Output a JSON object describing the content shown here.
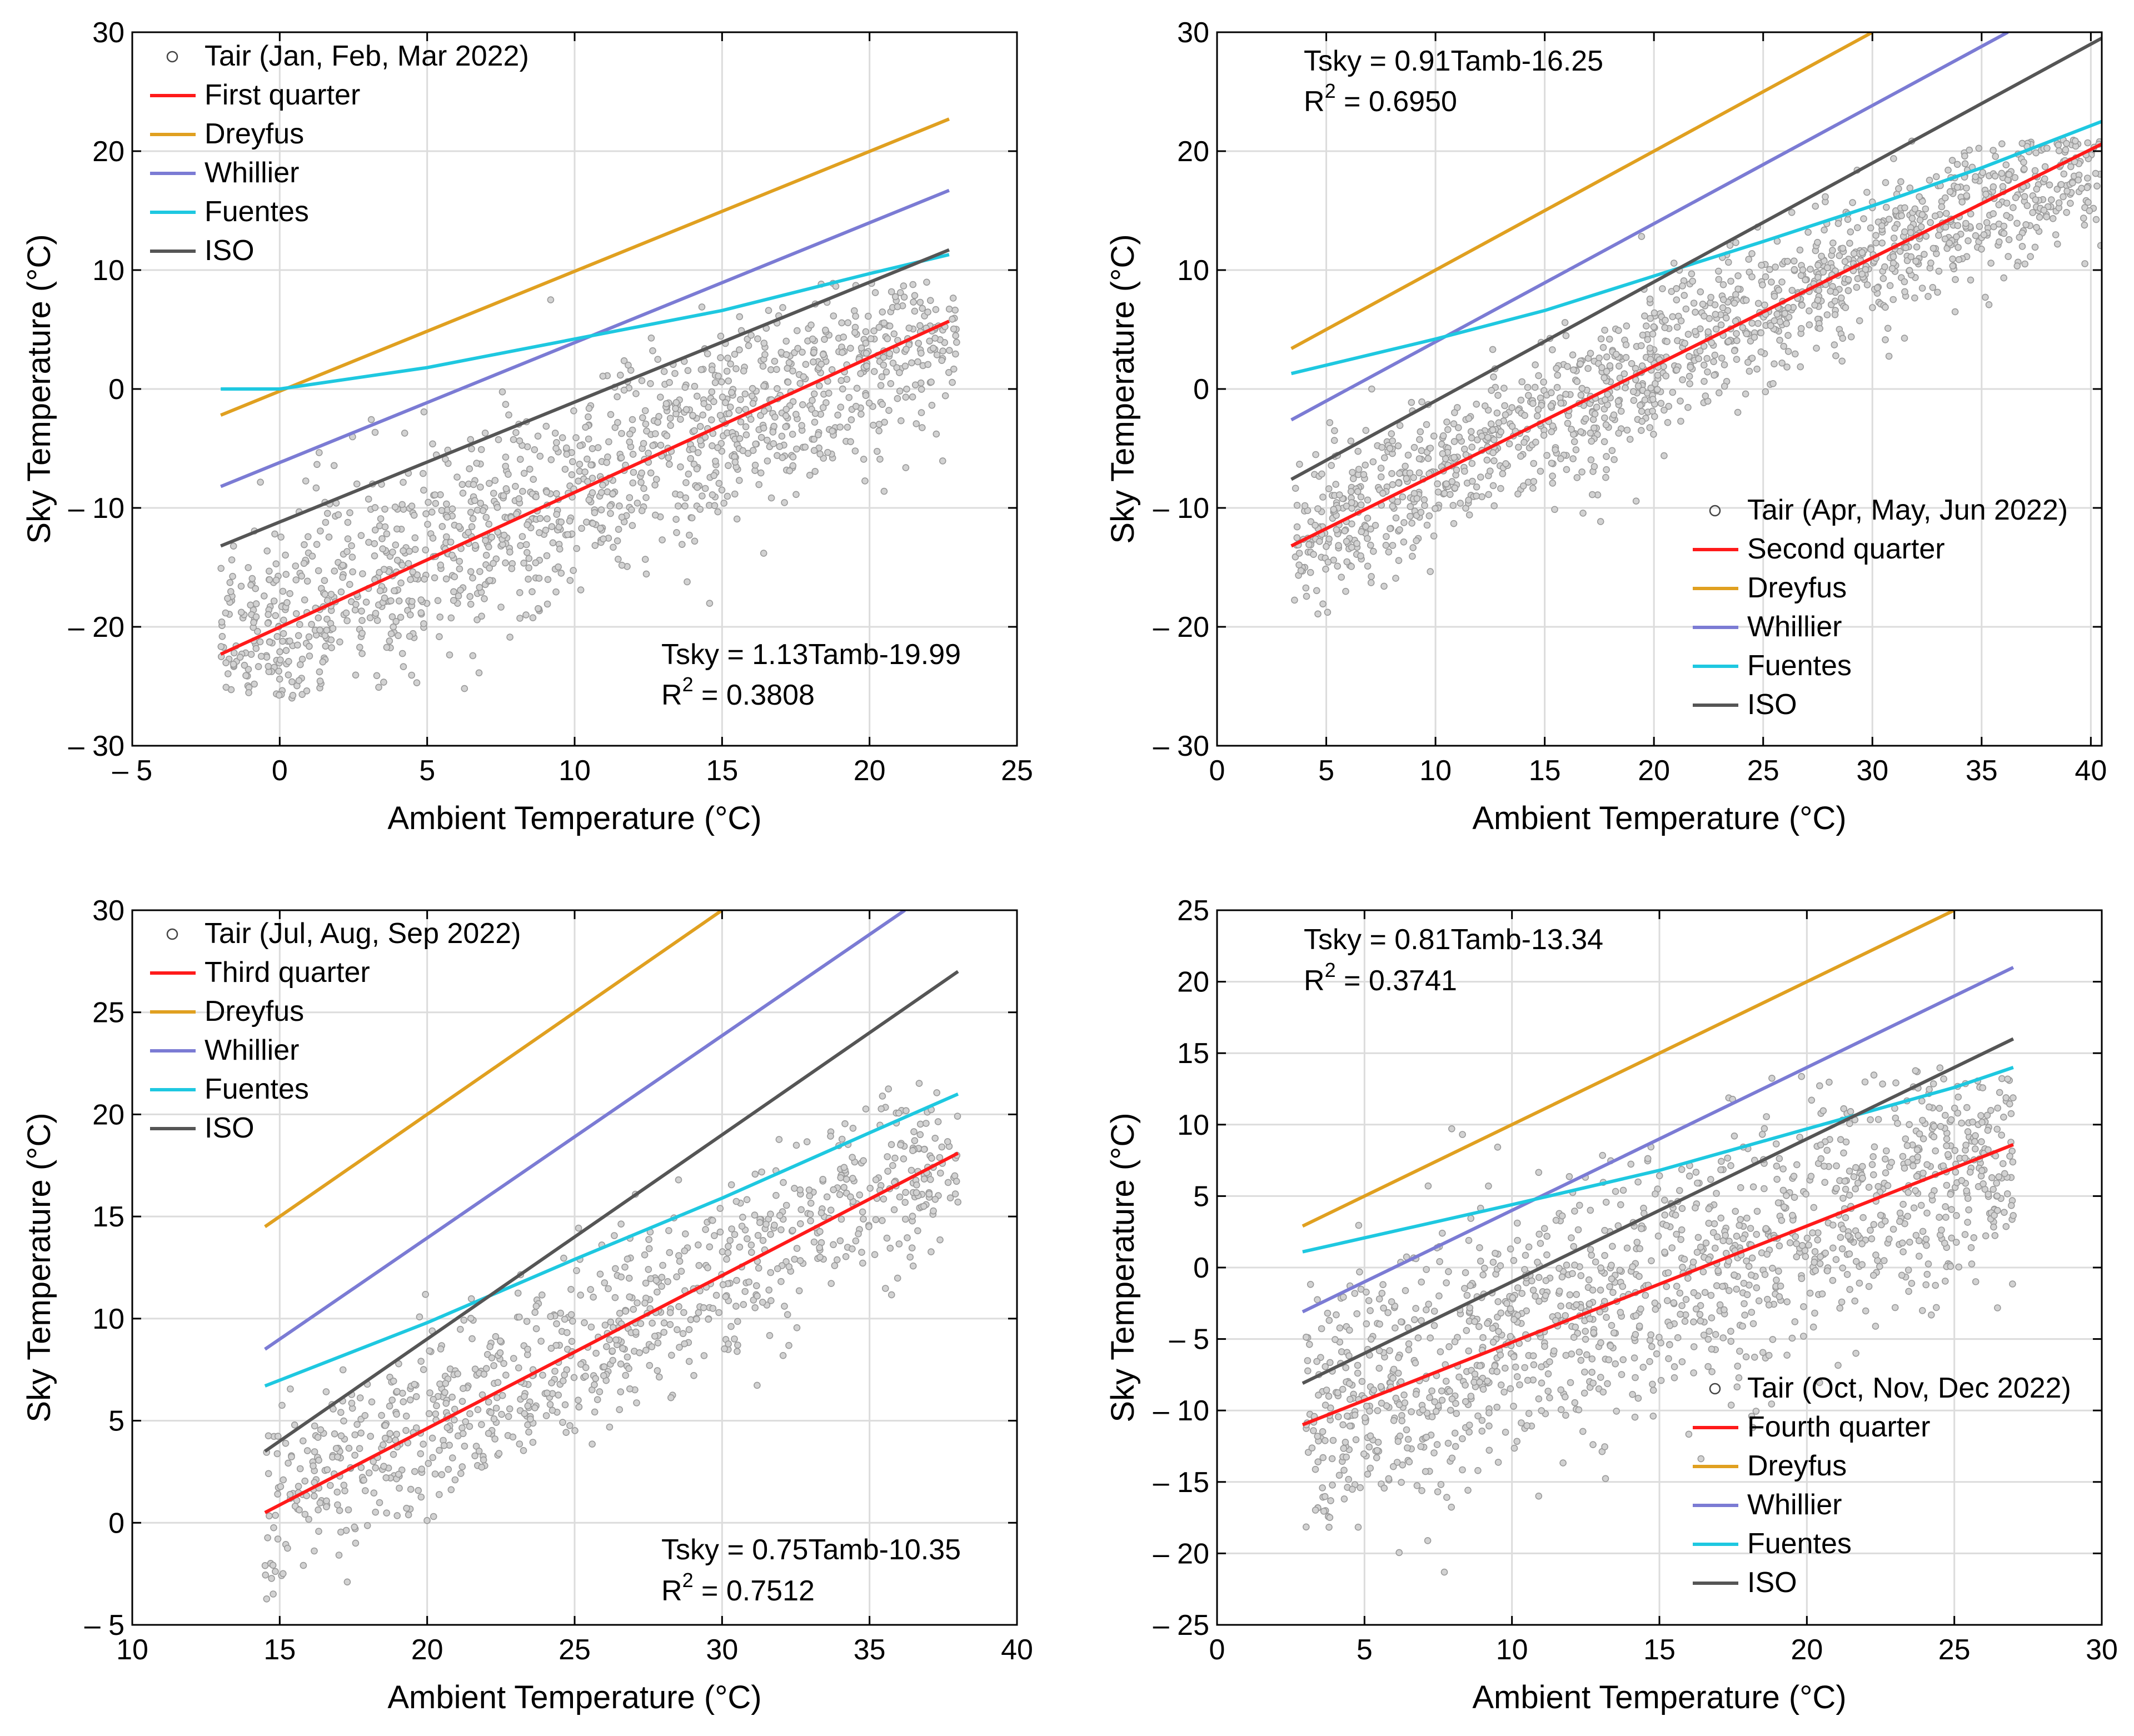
{
  "chart_data": [
    {
      "type": "scatter",
      "title": "",
      "xlabel": "Ambient Temperature (°C)",
      "ylabel": "Sky Temperature (°C)",
      "xlim": [
        -5,
        25
      ],
      "ylim": [
        -30,
        30
      ],
      "xticks": [
        -5,
        0,
        5,
        10,
        15,
        20,
        25
      ],
      "yticks": [
        -30,
        -20,
        -10,
        0,
        10,
        20,
        30
      ],
      "xtick_labels": [
        "– 5",
        "0",
        "5",
        "10",
        "15",
        "20",
        "25"
      ],
      "ytick_labels": [
        "– 30",
        "– 20",
        "– 10",
        "0",
        "10",
        "20",
        "30"
      ],
      "grid": true,
      "legend_position": "top-left",
      "legend": [
        "Tair (Jan, Feb, Mar 2022)",
        "First quarter",
        "Dreyfus",
        "Whillier",
        "Fuentes",
        "ISO"
      ],
      "annotation_position": "bottom-right",
      "annotation": {
        "equation": "Tsky = 1.13Tamb-19.99",
        "r2_prefix": "R",
        "r2_sup": "2",
        "r2_value": " = 0.3808"
      },
      "scatter": {
        "x_range": [
          -2,
          23
        ],
        "y_range": [
          -26,
          9
        ],
        "count": 1400,
        "slope": 1.13,
        "intercept": -19.99,
        "spread": 4.5
      },
      "series": [
        {
          "name": "First quarter",
          "color": "#ff1a1a",
          "x": [
            -2,
            22.7
          ],
          "y": [
            -22.3,
            5.7
          ]
        },
        {
          "name": "Dreyfus",
          "color": "#e0a020",
          "x": [
            -2,
            22.7
          ],
          "y": [
            -2.2,
            22.7
          ]
        },
        {
          "name": "Whillier",
          "color": "#7b7bd4",
          "x": [
            -2,
            22.7
          ],
          "y": [
            -8.2,
            16.7
          ]
        },
        {
          "name": "Fuentes",
          "color": "#1ec8e0",
          "x": [
            -2,
            0,
            5,
            10,
            15,
            20,
            22.7
          ],
          "y": [
            0,
            0,
            1.8,
            4.2,
            6.6,
            9.7,
            11.3
          ]
        },
        {
          "name": "ISO",
          "color": "#555555",
          "x": [
            -2,
            22.7
          ],
          "y": [
            -13.2,
            11.7
          ]
        }
      ]
    },
    {
      "type": "scatter",
      "title": "",
      "xlabel": "Ambient Temperature (°C)",
      "ylabel": "Sky Temperature (°C)",
      "xlim": [
        0,
        40.5
      ],
      "ylim": [
        -30,
        30
      ],
      "xticks": [
        0,
        5,
        10,
        15,
        20,
        25,
        30,
        35,
        40
      ],
      "yticks": [
        -30,
        -20,
        -10,
        0,
        10,
        20,
        30
      ],
      "xtick_labels": [
        "0",
        "5",
        "10",
        "15",
        "20",
        "25",
        "30",
        "35",
        "40"
      ],
      "ytick_labels": [
        "– 30",
        "– 20",
        "– 10",
        "0",
        "10",
        "20",
        "30"
      ],
      "grid": true,
      "legend_position": "bottom-right",
      "legend": [
        "Tair (Apr, May, Jun 2022)",
        "Second quarter",
        "Dreyfus",
        "Whillier",
        "Fuentes",
        "ISO"
      ],
      "annotation_position": "top-left",
      "annotation": {
        "equation": "Tsky = 0.91Tamb-16.25",
        "r2_prefix": "R",
        "r2_sup": "2",
        "r2_value": " = 0.6950"
      },
      "scatter": {
        "x_range": [
          3.5,
          40.5
        ],
        "y_range": [
          -19,
          21
        ],
        "count": 1500,
        "slope": 0.91,
        "intercept": -16.25,
        "spread": 3.2
      },
      "series": [
        {
          "name": "Second quarter",
          "color": "#ff1a1a",
          "x": [
            3.4,
            40.5
          ],
          "y": [
            -13.2,
            20.6
          ]
        },
        {
          "name": "Dreyfus",
          "color": "#e0a020",
          "x": [
            3.4,
            30
          ],
          "y": [
            3.4,
            30
          ]
        },
        {
          "name": "Whillier",
          "color": "#7b7bd4",
          "x": [
            3.4,
            36.2
          ],
          "y": [
            -2.6,
            30
          ]
        },
        {
          "name": "Fuentes",
          "color": "#1ec8e0",
          "x": [
            3.4,
            10,
            15,
            20,
            25,
            30,
            35,
            40.5
          ],
          "y": [
            1.3,
            4.2,
            6.6,
            9.5,
            12.4,
            15.4,
            18.6,
            22.5
          ]
        },
        {
          "name": "ISO",
          "color": "#555555",
          "x": [
            3.4,
            40.5
          ],
          "y": [
            -7.6,
            29.5
          ]
        }
      ]
    },
    {
      "type": "scatter",
      "title": "",
      "xlabel": "Ambient Temperature (°C)",
      "ylabel": "Sky Temperature (°C)",
      "xlim": [
        10,
        40
      ],
      "ylim": [
        -5,
        30
      ],
      "xticks": [
        10,
        15,
        20,
        25,
        30,
        35,
        40
      ],
      "yticks": [
        -5,
        0,
        5,
        10,
        15,
        20,
        25,
        30
      ],
      "xtick_labels": [
        "10",
        "15",
        "20",
        "25",
        "30",
        "35",
        "40"
      ],
      "ytick_labels": [
        "– 5",
        "0",
        "5",
        "10",
        "15",
        "20",
        "25",
        "30"
      ],
      "grid": true,
      "legend_position": "top-left",
      "legend": [
        "Tair (Jul, Aug, Sep 2022)",
        "Third quarter",
        "Dreyfus",
        "Whillier",
        "Fuentes",
        "ISO"
      ],
      "annotation_position": "bottom-right",
      "annotation": {
        "equation": "Tsky = 0.75Tamb-10.35",
        "r2_prefix": "R",
        "r2_sup": "2",
        "r2_value": " = 0.7512"
      },
      "scatter": {
        "x_range": [
          14.5,
          38
        ],
        "y_range": [
          -4,
          22
        ],
        "count": 900,
        "slope": 0.75,
        "intercept": -10.35,
        "spread": 2.2
      },
      "series": [
        {
          "name": "Third quarter",
          "color": "#ff1a1a",
          "x": [
            14.5,
            38
          ],
          "y": [
            0.5,
            18.1
          ]
        },
        {
          "name": "Dreyfus",
          "color": "#e0a020",
          "x": [
            14.5,
            30
          ],
          "y": [
            14.5,
            30
          ]
        },
        {
          "name": "Whillier",
          "color": "#7b7bd4",
          "x": [
            14.5,
            36.2
          ],
          "y": [
            8.5,
            30
          ]
        },
        {
          "name": "Fuentes",
          "color": "#1ec8e0",
          "x": [
            14.5,
            20,
            25,
            30,
            35,
            38
          ],
          "y": [
            6.7,
            9.8,
            12.9,
            15.9,
            19.1,
            21
          ]
        },
        {
          "name": "ISO",
          "color": "#555555",
          "x": [
            14.5,
            38
          ],
          "y": [
            3.5,
            27
          ]
        }
      ]
    },
    {
      "type": "scatter",
      "title": "",
      "xlabel": "Ambient Temperature (°C)",
      "ylabel": "Sky Temperature (°C)",
      "xlim": [
        0,
        30
      ],
      "ylim": [
        -25,
        25
      ],
      "xticks": [
        0,
        5,
        10,
        15,
        20,
        25,
        30
      ],
      "yticks": [
        -25,
        -20,
        -15,
        -10,
        -5,
        0,
        5,
        10,
        15,
        20,
        25
      ],
      "xtick_labels": [
        "0",
        "5",
        "10",
        "15",
        "20",
        "25",
        "30"
      ],
      "ytick_labels": [
        "– 25",
        "– 20",
        "– 15",
        "– 10",
        "– 5",
        "0",
        "5",
        "10",
        "15",
        "20",
        "25"
      ],
      "grid": true,
      "legend_position": "bottom-right",
      "legend": [
        "Tair (Oct, Nov, Dec 2022)",
        "Fourth quarter",
        "Dreyfus",
        "Whillier",
        "Fuentes",
        "ISO"
      ],
      "annotation_position": "top-left",
      "annotation": {
        "equation": "Tsky = 0.81Tamb-13.34",
        "r2_prefix": "R",
        "r2_sup": "2",
        "r2_value": " = 0.3741"
      },
      "scatter": {
        "x_range": [
          3,
          27
        ],
        "y_range": [
          -22,
          14
        ],
        "count": 1400,
        "slope": 0.81,
        "intercept": -13.34,
        "spread": 4.5
      },
      "series": [
        {
          "name": "Fourth quarter",
          "color": "#ff1a1a",
          "x": [
            2.9,
            27
          ],
          "y": [
            -11,
            8.6
          ]
        },
        {
          "name": "Dreyfus",
          "color": "#e0a020",
          "x": [
            2.9,
            25
          ],
          "y": [
            2.9,
            25
          ]
        },
        {
          "name": "Whillier",
          "color": "#7b7bd4",
          "x": [
            2.9,
            27
          ],
          "y": [
            -3.1,
            21
          ]
        },
        {
          "name": "Fuentes",
          "color": "#1ec8e0",
          "x": [
            2.9,
            10,
            15,
            20,
            25,
            27
          ],
          "y": [
            1.1,
            4.4,
            6.8,
            9.7,
            12.6,
            14
          ]
        },
        {
          "name": "ISO",
          "color": "#555555",
          "x": [
            2.9,
            27
          ],
          "y": [
            -8.1,
            16
          ]
        }
      ]
    }
  ]
}
